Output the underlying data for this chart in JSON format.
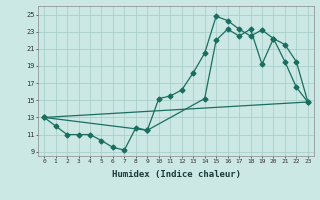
{
  "xlabel": "Humidex (Indice chaleur)",
  "bg_color": "#cce8e4",
  "grid_color": "#aacfcb",
  "line_color": "#1a6e60",
  "xlim": [
    -0.5,
    23.5
  ],
  "ylim": [
    8.5,
    26
  ],
  "yticks": [
    9,
    11,
    13,
    15,
    17,
    19,
    21,
    23,
    25
  ],
  "xticks": [
    0,
    1,
    2,
    3,
    4,
    5,
    6,
    7,
    8,
    9,
    10,
    11,
    12,
    13,
    14,
    15,
    16,
    17,
    18,
    19,
    20,
    21,
    22,
    23
  ],
  "line1_x": [
    0,
    1,
    2,
    3,
    4,
    5,
    6,
    7,
    8,
    9,
    10,
    11,
    12,
    13,
    14,
    15,
    16,
    17,
    18,
    19,
    20,
    21,
    22,
    23
  ],
  "line1_y": [
    13,
    12,
    11,
    11,
    11,
    10.3,
    9.5,
    9.2,
    11.8,
    11.5,
    15.2,
    15.5,
    16.2,
    18.2,
    20.5,
    24.8,
    24.3,
    23.3,
    22.5,
    23.2,
    22.2,
    19.5,
    16.5,
    14.8
  ],
  "line2_x": [
    0,
    9,
    14,
    15,
    16,
    17,
    18,
    19,
    20,
    21,
    22,
    23
  ],
  "line2_y": [
    13,
    11.5,
    15.2,
    22.0,
    23.3,
    22.5,
    23.3,
    19.2,
    22.2,
    21.5,
    19.5,
    14.8
  ],
  "line3_x": [
    0,
    23
  ],
  "line3_y": [
    13,
    14.8
  ]
}
